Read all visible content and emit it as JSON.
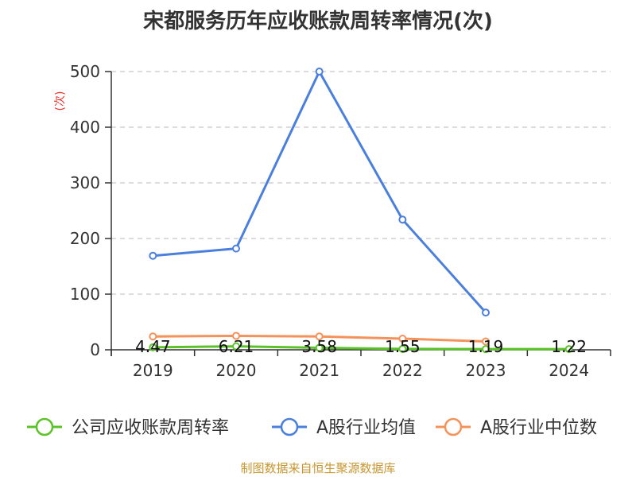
{
  "chart_data": {
    "type": "line",
    "title": "宋都服务历年应收账款周转率情况(次)",
    "ylabel": "(次)",
    "categories": [
      "2019",
      "2020",
      "2021",
      "2022",
      "2023",
      "2024"
    ],
    "ylim": [
      0,
      500
    ],
    "yticks": [
      0,
      100,
      200,
      300,
      400,
      500
    ],
    "grid": true,
    "legend_position": "bottom",
    "series": [
      {
        "name": "公司应收账款周转率",
        "color": "#5cc22a",
        "values": [
          4.47,
          6.21,
          3.58,
          1.55,
          1.19,
          1.22
        ],
        "labels": [
          "4.47",
          "6.21",
          "3.58",
          "1.55",
          "1.19",
          "1.22"
        ]
      },
      {
        "name": "A股行业均值",
        "color": "#4a7fdc",
        "values": [
          169,
          182,
          500,
          234,
          67,
          null
        ]
      },
      {
        "name": "A股行业中位数",
        "color": "#f5925a",
        "values": [
          24,
          25,
          24,
          20,
          15,
          null
        ]
      }
    ]
  },
  "source": "制图数据来自恒生聚源数据库"
}
